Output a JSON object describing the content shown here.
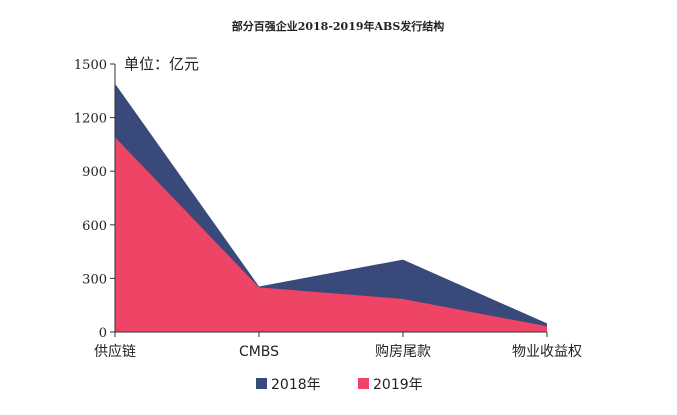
{
  "chart_data": {
    "type": "area",
    "title": "部分百强企业2018-2019年ABS发行结构",
    "unit_label": "单位：亿元",
    "categories": [
      "供应链",
      "CMBS",
      "购房尾款",
      "物业收益权"
    ],
    "series": [
      {
        "name": "2018年",
        "color": "#394a7a",
        "values": [
          1390,
          255,
          405,
          48
        ]
      },
      {
        "name": "2019年",
        "color": "#ee4466",
        "values": [
          1090,
          250,
          185,
          32
        ]
      }
    ],
    "yticks": [
      0,
      300,
      600,
      900,
      1200,
      1500
    ],
    "ylim": [
      0,
      1500
    ],
    "legend_position": "bottom",
    "grid": false
  }
}
